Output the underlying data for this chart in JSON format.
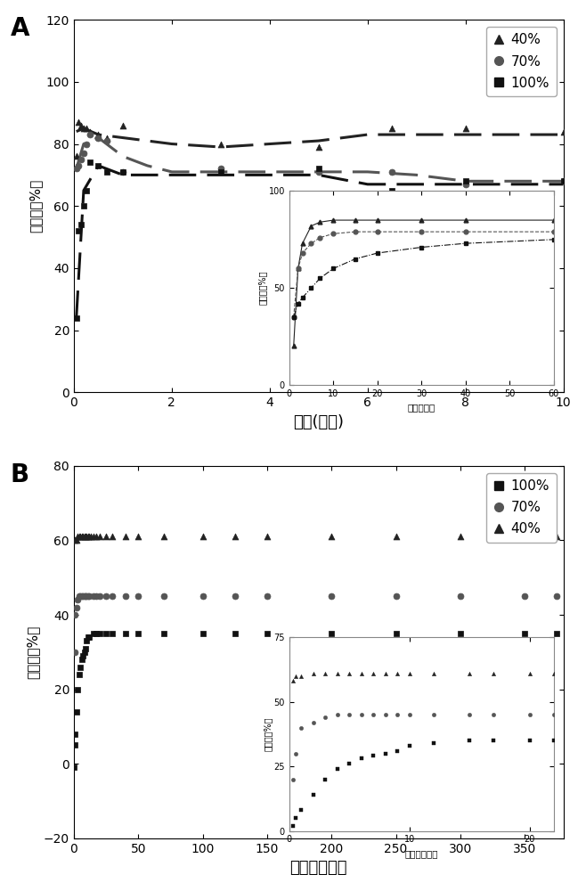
{
  "panel_A": {
    "title": "A",
    "xlabel": "时间(分钟)",
    "ylabel": "含水率（%）",
    "xlim": [
      0,
      10
    ],
    "ylim": [
      0,
      120
    ],
    "yticks": [
      0,
      20,
      40,
      60,
      80,
      100,
      120
    ],
    "xticks": [
      0,
      2,
      4,
      6,
      8,
      10
    ],
    "series": {
      "40%": {
        "scatter_x": [
          0.05,
          0.1,
          0.15,
          0.2,
          0.25,
          0.33,
          0.5,
          0.67,
          1.0,
          3.0,
          5.0,
          6.5,
          8.0,
          10.0
        ],
        "scatter_y": [
          76,
          87,
          86,
          85,
          85,
          84,
          83,
          82,
          86,
          80,
          79,
          85,
          85,
          84
        ],
        "line_x": [
          0.05,
          0.2,
          0.5,
          1.0,
          1.5,
          2.0,
          3.0,
          4.0,
          5.0,
          6.0,
          7.0,
          8.0,
          9.0,
          10.0
        ],
        "line_y": [
          84,
          85,
          83,
          82,
          81,
          80,
          79,
          80,
          81,
          83,
          83,
          83,
          83,
          83
        ],
        "marker": "^",
        "color": "#222222",
        "linestyle": "--"
      },
      "70%": {
        "scatter_x": [
          0.05,
          0.1,
          0.15,
          0.2,
          0.25,
          0.33,
          0.5,
          0.67,
          1.0,
          3.0,
          5.0,
          6.5,
          8.0,
          10.0
        ],
        "scatter_y": [
          72,
          73,
          75,
          77,
          80,
          83,
          82,
          81,
          71,
          72,
          71,
          71,
          67,
          68
        ],
        "line_x": [
          0.05,
          0.2,
          0.5,
          1.0,
          1.5,
          2.0,
          3.0,
          4.0,
          5.0,
          6.0,
          7.0,
          8.0,
          9.0,
          10.0
        ],
        "line_y": [
          72,
          80,
          82,
          76,
          73,
          71,
          71,
          71,
          71,
          71,
          70,
          68,
          68,
          68
        ],
        "marker": "o",
        "color": "#555555",
        "linestyle": "--"
      },
      "100%": {
        "scatter_x": [
          0.05,
          0.1,
          0.15,
          0.2,
          0.25,
          0.33,
          0.5,
          0.67,
          1.0,
          3.0,
          5.0,
          6.5,
          8.0,
          10.0
        ],
        "scatter_y": [
          24,
          52,
          54,
          60,
          65,
          74,
          73,
          71,
          71,
          71,
          72,
          65,
          68,
          68
        ],
        "line_x": [
          0.05,
          0.2,
          0.5,
          1.0,
          1.5,
          2.0,
          3.0,
          4.0,
          5.0,
          6.0,
          7.0,
          8.0,
          9.0,
          10.0
        ],
        "line_y": [
          24,
          65,
          73,
          70,
          70,
          70,
          70,
          70,
          70,
          67,
          67,
          67,
          67,
          67
        ],
        "marker": "s",
        "color": "#111111",
        "linestyle": "--"
      }
    },
    "inset": {
      "xlabel": "时间（秒）",
      "ylabel": "含水率（%）",
      "xlim": [
        0,
        60
      ],
      "ylim": [
        0,
        100
      ],
      "yticks": [
        0,
        50,
        100
      ],
      "xticks": [
        0,
        10,
        20,
        30,
        40,
        50,
        60
      ],
      "series": {
        "40%": {
          "x": [
            1,
            2,
            3,
            5,
            7,
            10,
            15,
            20,
            30,
            40,
            60
          ],
          "y": [
            20,
            60,
            73,
            82,
            84,
            85,
            85,
            85,
            85,
            85,
            85
          ],
          "marker": "^",
          "color": "#222222",
          "linestyle": "-"
        },
        "70%": {
          "x": [
            1,
            2,
            3,
            5,
            7,
            10,
            15,
            20,
            30,
            40,
            60
          ],
          "y": [
            35,
            60,
            68,
            73,
            76,
            78,
            79,
            79,
            79,
            79,
            79
          ],
          "marker": "o",
          "color": "#555555",
          "linestyle": "--"
        },
        "100%": {
          "x": [
            1,
            2,
            3,
            5,
            7,
            10,
            15,
            20,
            30,
            40,
            60
          ],
          "y": [
            35,
            42,
            45,
            50,
            55,
            60,
            65,
            68,
            71,
            73,
            75
          ],
          "marker": "s",
          "color": "#111111",
          "linestyle": "-."
        }
      }
    }
  },
  "panel_B": {
    "title": "B",
    "xlabel": "时间（小时）",
    "ylabel": "含水率（%）",
    "xlim": [
      0,
      380
    ],
    "ylim": [
      -20,
      80
    ],
    "yticks": [
      -20,
      0,
      20,
      40,
      60,
      80
    ],
    "xticks": [
      0,
      50,
      100,
      150,
      200,
      250,
      300,
      350
    ],
    "series": {
      "40%": {
        "scatter_x": [
          1,
          2,
          3,
          4,
          5,
          6,
          7,
          8,
          9,
          10,
          11,
          12,
          13,
          15,
          17,
          20,
          25,
          30,
          40,
          50,
          70,
          100,
          125,
          150,
          200,
          250,
          300,
          350,
          375
        ],
        "scatter_y": [
          60,
          60,
          61,
          61,
          61,
          61,
          61,
          61,
          61,
          61,
          61,
          61,
          61,
          61,
          61,
          61,
          61,
          61,
          61,
          61,
          61,
          61,
          61,
          61,
          61,
          61,
          61,
          61,
          61
        ],
        "marker": "^",
        "color": "#222222"
      },
      "70%": {
        "scatter_x": [
          0.5,
          1,
          2,
          3,
          4,
          5,
          6,
          7,
          8,
          9,
          10,
          11,
          12,
          15,
          17,
          20,
          25,
          30,
          40,
          50,
          70,
          100,
          125,
          150,
          200,
          250,
          300,
          350,
          375
        ],
        "scatter_y": [
          30,
          40,
          42,
          44,
          45,
          45,
          45,
          45,
          45,
          45,
          45,
          45,
          45,
          45,
          45,
          45,
          45,
          45,
          45,
          45,
          45,
          45,
          45,
          45,
          45,
          45,
          45,
          45,
          45
        ],
        "marker": "o",
        "color": "#555555"
      },
      "100%": {
        "scatter_x": [
          0.1,
          0.5,
          1,
          2,
          3,
          4,
          5,
          6,
          7,
          8,
          9,
          10,
          11,
          12,
          15,
          17,
          20,
          25,
          30,
          40,
          50,
          70,
          100,
          125,
          150,
          200,
          250,
          300,
          350,
          375
        ],
        "scatter_y": [
          -1,
          5,
          8,
          14,
          20,
          24,
          26,
          28,
          29,
          30,
          31,
          33,
          34,
          34,
          35,
          35,
          35,
          35,
          35,
          35,
          35,
          35,
          35,
          35,
          35,
          35,
          35,
          35,
          35,
          35
        ],
        "marker": "s",
        "color": "#111111"
      }
    },
    "inset": {
      "xlabel": "时间（小时）",
      "ylabel": "含水率（%）",
      "xlim": [
        0,
        22
      ],
      "ylim": [
        0,
        75
      ],
      "yticks": [
        0,
        25,
        50,
        75
      ],
      "xticks": [
        0,
        10,
        20
      ],
      "series": {
        "40%": {
          "x": [
            0.3,
            0.5,
            1,
            2,
            3,
            4,
            5,
            6,
            7,
            8,
            9,
            10,
            12,
            15,
            17,
            20,
            22
          ],
          "y": [
            58,
            60,
            60,
            61,
            61,
            61,
            61,
            61,
            61,
            61,
            61,
            61,
            61,
            61,
            61,
            61,
            61
          ],
          "marker": "^",
          "color": "#222222"
        },
        "70%": {
          "x": [
            0.3,
            0.5,
            1,
            2,
            3,
            4,
            5,
            6,
            7,
            8,
            9,
            10,
            12,
            15,
            17,
            20,
            22
          ],
          "y": [
            20,
            30,
            40,
            42,
            44,
            45,
            45,
            45,
            45,
            45,
            45,
            45,
            45,
            45,
            45,
            45,
            45
          ],
          "marker": "o",
          "color": "#555555"
        },
        "100%": {
          "x": [
            0.3,
            0.5,
            1,
            2,
            3,
            4,
            5,
            6,
            7,
            8,
            9,
            10,
            12,
            15,
            17,
            20,
            22
          ],
          "y": [
            2,
            5,
            8,
            14,
            20,
            24,
            26,
            28,
            29,
            30,
            31,
            33,
            34,
            35,
            35,
            35,
            35
          ],
          "marker": "s",
          "color": "#111111"
        }
      }
    }
  },
  "bg_color": "#ffffff"
}
